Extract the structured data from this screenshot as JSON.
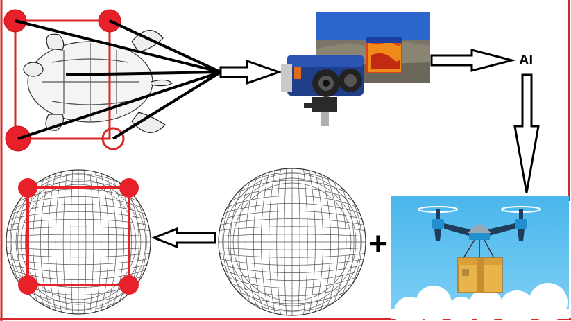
{
  "labels": {
    "ai": "AI",
    "plus": "+"
  },
  "colors": {
    "frame": "#d62828",
    "marker": "#e8202a",
    "sky_top": "#4ab6ec",
    "sky_bottom": "#7fd0f5",
    "drone_arm": "#1e3d5c",
    "drone_blue": "#1f8fd0",
    "box": "#e9b54a",
    "camera_blue": "#1f3f8a"
  },
  "icons": [
    "turtle-sketch-icon",
    "thermal-camera-icon",
    "thermal-photo-icon",
    "delivery-drone-icon",
    "cardboard-box-icon",
    "cloud-icon"
  ]
}
